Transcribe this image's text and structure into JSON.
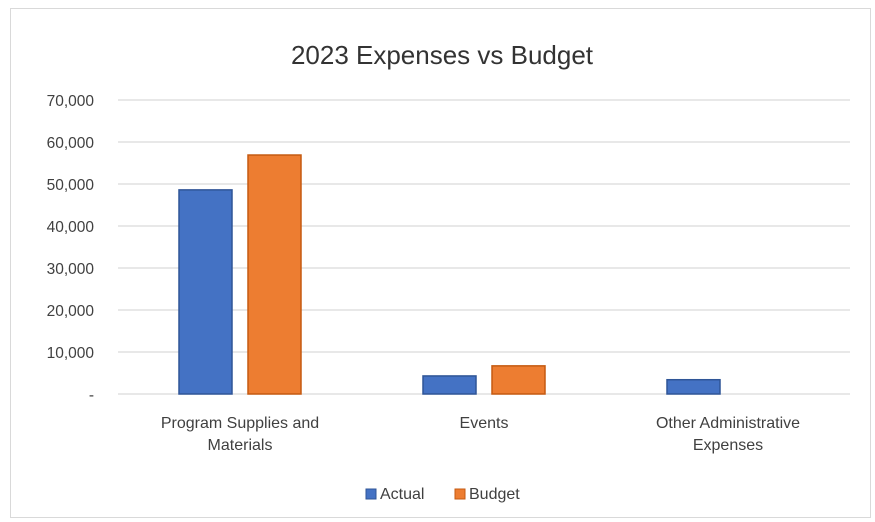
{
  "chart_data": {
    "type": "bar",
    "title": "2023 Expenses vs Budget",
    "xlabel": "",
    "ylabel": "",
    "categories": [
      [
        "Program Supplies and",
        "Materials"
      ],
      [
        "Events"
      ],
      [
        "Other Administrative",
        "Expenses"
      ]
    ],
    "series": [
      {
        "name": "Actual",
        "values": [
          48600,
          4300,
          3400
        ],
        "color": "#4472C4",
        "stroke": "#2F5597"
      },
      {
        "name": "Budget",
        "values": [
          56900,
          6700,
          0
        ],
        "color": "#ED7D31",
        "stroke": "#C55A11"
      }
    ],
    "ylim": [
      0,
      70000
    ],
    "yticks": [
      {
        "value": 0,
        "label": "-"
      },
      {
        "value": 10000,
        "label": "10,000"
      },
      {
        "value": 20000,
        "label": "20,000"
      },
      {
        "value": 30000,
        "label": "30,000"
      },
      {
        "value": 40000,
        "label": "40,000"
      },
      {
        "value": 50000,
        "label": "50,000"
      },
      {
        "value": 60000,
        "label": "60,000"
      },
      {
        "value": 70000,
        "label": "70,000"
      }
    ],
    "grid": true,
    "legend_position": "bottom",
    "gridline_color": "#d9d9d9"
  }
}
